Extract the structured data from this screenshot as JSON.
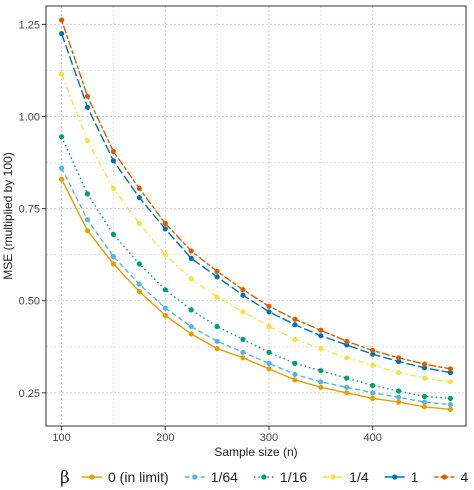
{
  "chart_data": {
    "type": "line",
    "xlabel": "Sample size (n)",
    "ylabel": "MSE (multiplied by 100)",
    "xlim": [
      85,
      490
    ],
    "ylim": [
      0.16,
      1.3
    ],
    "x_ticks": [
      100,
      200,
      300,
      400
    ],
    "x_tick_labels": [
      "100",
      "200",
      "300",
      "400"
    ],
    "y_ticks": [
      0.25,
      0.5,
      0.75,
      1.0,
      1.25
    ],
    "y_tick_labels": [
      "0.25",
      "0.50",
      "0.75",
      "1.00",
      "1.25"
    ],
    "grid": true,
    "legend": {
      "title": "β",
      "position": "bottom"
    },
    "x": [
      100,
      125,
      150,
      175,
      200,
      225,
      250,
      275,
      300,
      325,
      350,
      375,
      400,
      425,
      450,
      475
    ],
    "series": [
      {
        "name": "0 (in limit)",
        "color": "#E69F00",
        "dash": "solid",
        "values": [
          0.83,
          0.69,
          0.6,
          0.525,
          0.46,
          0.41,
          0.37,
          0.345,
          0.315,
          0.285,
          0.265,
          0.25,
          0.235,
          0.225,
          0.212,
          0.205
        ]
      },
      {
        "name": "1/64",
        "color": "#56B4E9",
        "dash": "dashed",
        "values": [
          0.86,
          0.72,
          0.62,
          0.545,
          0.48,
          0.43,
          0.39,
          0.36,
          0.33,
          0.3,
          0.28,
          0.265,
          0.25,
          0.238,
          0.225,
          0.218
        ]
      },
      {
        "name": "1/16",
        "color": "#009E73",
        "dash": "dotted",
        "values": [
          0.945,
          0.79,
          0.68,
          0.6,
          0.53,
          0.475,
          0.43,
          0.395,
          0.36,
          0.33,
          0.31,
          0.29,
          0.27,
          0.255,
          0.24,
          0.235
        ]
      },
      {
        "name": "1/4",
        "color": "#F0E442",
        "dash": "dashdot",
        "values": [
          1.115,
          0.935,
          0.805,
          0.71,
          0.625,
          0.56,
          0.51,
          0.47,
          0.43,
          0.395,
          0.37,
          0.345,
          0.325,
          0.305,
          0.29,
          0.28
        ]
      },
      {
        "name": "1",
        "color": "#0072B2",
        "dash": "longdash",
        "values": [
          1.225,
          1.025,
          0.88,
          0.78,
          0.695,
          0.615,
          0.565,
          0.515,
          0.47,
          0.435,
          0.405,
          0.38,
          0.355,
          0.335,
          0.318,
          0.305
        ]
      },
      {
        "name": "4",
        "color": "#D55E00",
        "dash": "twodash",
        "values": [
          1.262,
          1.055,
          0.905,
          0.805,
          0.71,
          0.635,
          0.58,
          0.53,
          0.485,
          0.45,
          0.42,
          0.39,
          0.365,
          0.345,
          0.328,
          0.315
        ]
      }
    ]
  }
}
